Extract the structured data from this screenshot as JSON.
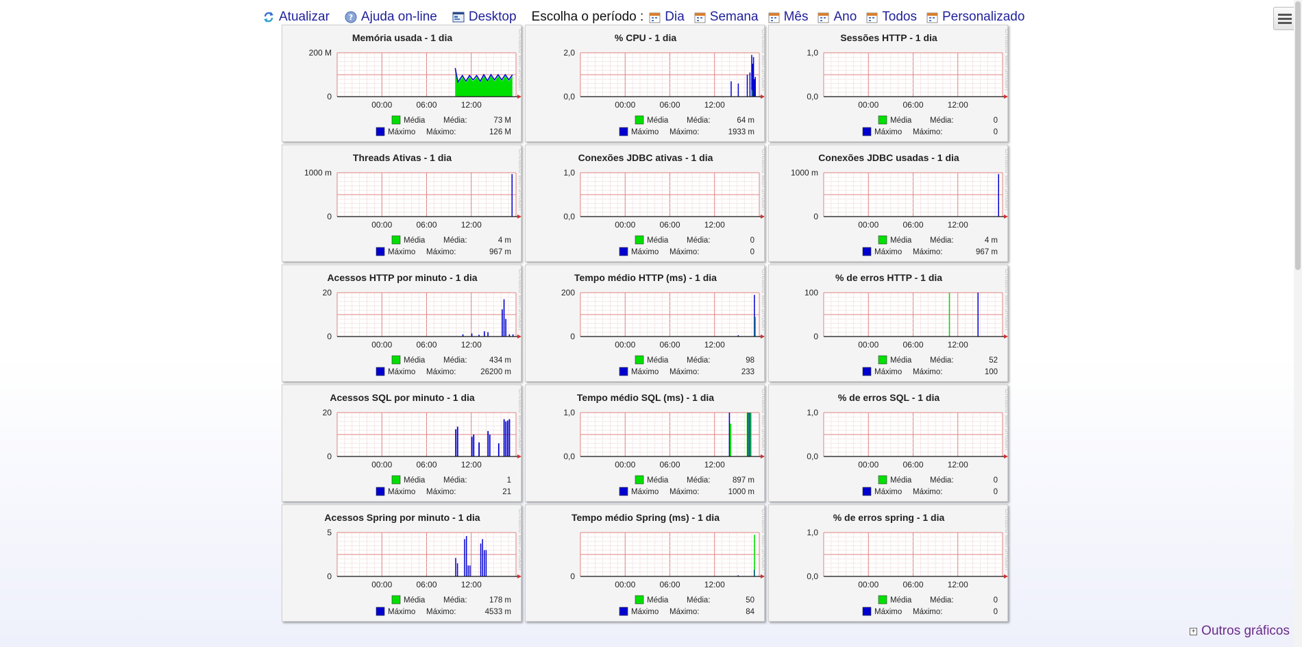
{
  "toolbar": {
    "refresh_label": "Atualizar",
    "help_label": "Ajuda on-line",
    "desktop_label": "Desktop",
    "period_label": "Escolha o período :",
    "periods": [
      "Dia",
      "Semana",
      "Mês",
      "Ano",
      "Todos",
      "Personalizado"
    ]
  },
  "others_label": "Outros gráficos",
  "watermark": "Created with JRobin",
  "legend_labels": {
    "mean": "Média",
    "max": "Máximo",
    "mean_value_label": "Média:",
    "max_value_label": "Máximo:"
  },
  "colors": {
    "mean": "#00e000",
    "max": "#0000d0",
    "grid_major": "#e08080",
    "grid_minor": "#e6c8c8",
    "axis": "#111111"
  },
  "x_ticks": [
    "00:00",
    "06:00",
    "12:00"
  ],
  "charts": [
    {
      "title": "Memória usada - 1 dia",
      "y_ticks": [
        "200 M",
        "0"
      ],
      "mean": "73 M",
      "max": "126 M",
      "kind": "memory"
    },
    {
      "title": "% CPU - 1 dia",
      "y_ticks": [
        "2,0",
        "0,0"
      ],
      "mean": "64 m",
      "max": "1933 m",
      "kind": "cpu"
    },
    {
      "title": "Sessões HTTP - 1 dia",
      "y_ticks": [
        "1,0",
        "0,0"
      ],
      "mean": "0",
      "max": "0",
      "kind": "none"
    },
    {
      "title": "Threads Ativas - 1 dia",
      "y_ticks": [
        "1000 m",
        "0"
      ],
      "mean": "4 m",
      "max": "967 m",
      "kind": "single"
    },
    {
      "title": "Conexões JDBC ativas - 1 dia",
      "y_ticks": [
        "1,0",
        "0,0"
      ],
      "mean": "0",
      "max": "0",
      "kind": "none"
    },
    {
      "title": "Conexões JDBC usadas - 1 dia",
      "y_ticks": [
        "1000 m",
        "0"
      ],
      "mean": "4 m",
      "max": "967 m",
      "kind": "single"
    },
    {
      "title": "Acessos HTTP por minuto - 1 dia",
      "y_ticks": [
        "20",
        "0"
      ],
      "mean": "434 m",
      "max": "26200 m",
      "kind": "http"
    },
    {
      "title": "Tempo médio HTTP (ms) - 1 dia",
      "y_ticks": [
        "200",
        "0"
      ],
      "mean": "98",
      "max": "233",
      "kind": "httptime"
    },
    {
      "title": "% de erros HTTP - 1 dia",
      "y_ticks": [
        "100",
        "0"
      ],
      "mean": "52",
      "max": "100",
      "kind": "httperr"
    },
    {
      "title": "Acessos SQL por minuto - 1 dia",
      "y_ticks": [
        "20",
        "0"
      ],
      "mean": "1",
      "max": "21",
      "kind": "sql"
    },
    {
      "title": "Tempo médio SQL (ms) - 1 dia",
      "y_ticks": [
        "1,0",
        "0,0"
      ],
      "mean": "897 m",
      "max": "1000 m",
      "kind": "sqltime"
    },
    {
      "title": "% de erros SQL - 1 dia",
      "y_ticks": [
        "1,0",
        "0,0"
      ],
      "mean": "0",
      "max": "0",
      "kind": "none"
    },
    {
      "title": "Acessos Spring por minuto - 1 dia",
      "y_ticks": [
        "5",
        "0"
      ],
      "mean": "178 m",
      "max": "4533 m",
      "kind": "spring"
    },
    {
      "title": "Tempo médio Spring (ms) - 1 dia",
      "y_ticks": [
        "",
        "0"
      ],
      "mean": "50",
      "max": "84",
      "kind": "springtime"
    },
    {
      "title": "% de erros spring - 1 dia",
      "y_ticks": [
        "1,0",
        "0,0"
      ],
      "mean": "0",
      "max": "0",
      "kind": "none"
    }
  ]
}
